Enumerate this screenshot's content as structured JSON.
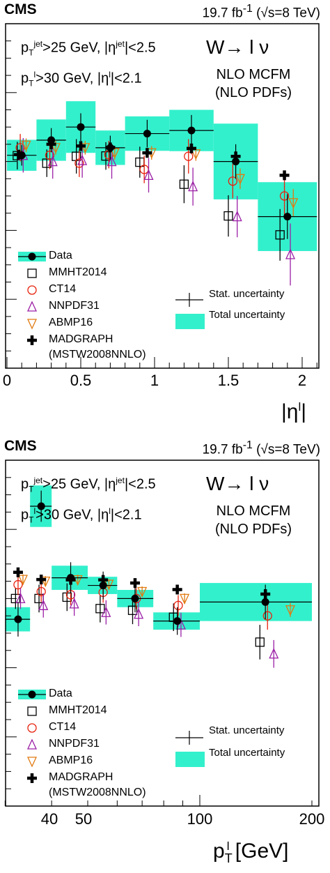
{
  "header": {
    "experiment": "CMS",
    "lumi": "19.7 fb",
    "lumi_sup": "-1",
    "energy": " (√s=8 TeV)"
  },
  "selection": {
    "jet_a": "p",
    "jet_sup": "jet",
    "jet_sub": "T",
    "jet_b": ">25 GeV, |η",
    "jet_sup2": "jet",
    "jet_c": "|<2.5",
    "lep_a": "p",
    "lep_sup": "l",
    "lep_sub": "T",
    "lep_b": ">30 GeV, |η",
    "lep_sup2": "l",
    "lep_c": "|<2.1"
  },
  "process": "W→ l ν",
  "calc": {
    "line1": "NLO MCFM",
    "line2": "(NLO PDFs)"
  },
  "legend": {
    "data": "Data",
    "mmht": "MMHT2014",
    "ct14": "CT14",
    "nnpdf": "NNPDF31",
    "abmp": "ABMP16",
    "madgraph": "MADGRAPH",
    "madgraph_pdf": "(MSTW2008NNLO)",
    "stat": "Stat. uncertainty",
    "total": "Total uncertainty"
  },
  "colors": {
    "band": "#33f0cc",
    "mmht": "#000000",
    "ct14": "#e8200c",
    "nnpdf": "#9b1fa6",
    "abmp": "#e07a10",
    "data": "#000000"
  },
  "chart_data": [
    {
      "type": "scatter",
      "xlabel": "|η^l|",
      "xlim": [
        0,
        2.1
      ],
      "x_ticks": [
        "0",
        "0.5",
        "1",
        "1.5",
        "2"
      ],
      "x_tick_values": [
        0,
        0.5,
        1,
        1.5,
        2
      ],
      "ylim": [
        0,
        1
      ],
      "bins": [
        [
          0,
          0.2
        ],
        [
          0.2,
          0.4
        ],
        [
          0.4,
          0.6
        ],
        [
          0.6,
          0.8
        ],
        [
          0.8,
          1.1
        ],
        [
          1.1,
          1.4
        ],
        [
          1.4,
          1.7
        ],
        [
          1.7,
          2.1
        ]
      ],
      "data": {
        "x": [
          0.1,
          0.3,
          0.5,
          0.7,
          0.95,
          1.25,
          1.55,
          1.9
        ],
        "y": [
          0.618,
          0.662,
          0.7,
          0.64,
          0.681,
          0.69,
          0.6,
          0.44
        ],
        "stat": [
          0.03,
          0.035,
          0.04,
          0.035,
          0.04,
          0.045,
          0.05,
          0.065
        ],
        "total": [
          0.045,
          0.06,
          0.075,
          0.05,
          0.05,
          0.06,
          0.11,
          0.1
        ]
      },
      "series": [
        {
          "name": "MMHT2014",
          "x": [
            0.07,
            0.27,
            0.47,
            0.67,
            0.9,
            1.2,
            1.5,
            1.85
          ],
          "y": [
            0.617,
            0.595,
            0.615,
            0.616,
            0.598,
            0.534,
            0.442,
            0.387
          ],
          "err": [
            0.04,
            0.04,
            0.05,
            0.04,
            0.045,
            0.055,
            0.06,
            0.075
          ]
        },
        {
          "name": "CT14",
          "x": [
            0.09,
            0.29,
            0.49,
            0.69,
            0.93,
            1.23,
            1.53,
            1.88
          ],
          "y": [
            0.64,
            0.618,
            0.595,
            0.62,
            0.577,
            0.615,
            0.543,
            0.5
          ],
          "err": [
            0.04,
            0.04,
            0.04,
            0.04,
            0.04,
            0.05,
            0.05,
            0.06
          ]
        },
        {
          "name": "NNPDF31",
          "x": [
            0.11,
            0.31,
            0.51,
            0.71,
            0.96,
            1.26,
            1.56,
            1.92
          ],
          "y": [
            0.618,
            0.6,
            0.603,
            0.6,
            0.56,
            0.527,
            0.44,
            0.33
          ],
          "err": [
            0.05,
            0.05,
            0.05,
            0.05,
            0.05,
            0.055,
            0.06,
            0.09
          ]
        },
        {
          "name": "ABMP16",
          "x": [
            0.13,
            0.33,
            0.53,
            0.73,
            0.98,
            1.28,
            1.58,
            1.94
          ],
          "y": [
            0.647,
            0.64,
            0.64,
            0.625,
            0.625,
            0.622,
            0.55,
            0.48
          ],
          "err": [
            0.02,
            0.02,
            0.02,
            0.02,
            0.02,
            0.02,
            0.03,
            0.04
          ]
        },
        {
          "name": "MADGRAPH",
          "x": [
            0.08,
            0.3,
            0.5,
            0.7,
            0.95,
            1.25,
            1.55,
            1.88
          ],
          "y": [
            0.62,
            0.65,
            0.645,
            0.641,
            0.625,
            0.638,
            0.615,
            0.56
          ],
          "err": [
            0,
            0,
            0,
            0,
            0,
            0,
            0,
            0
          ]
        }
      ]
    },
    {
      "type": "scatter",
      "xlabel": "p_T^l [GeV]",
      "x_scale": "log",
      "xlim": [
        30,
        200
      ],
      "x_ticks": [
        "40",
        "50",
        "100",
        "200"
      ],
      "x_tick_values": [
        40,
        50,
        100,
        200
      ],
      "ylim": [
        0,
        1
      ],
      "bins": [
        [
          30,
          35
        ],
        [
          35,
          40
        ],
        [
          40,
          50
        ],
        [
          50,
          60
        ],
        [
          60,
          75
        ],
        [
          75,
          100
        ],
        [
          100,
          200
        ]
      ],
      "data": {
        "x": [
          32.5,
          37.5,
          45,
          55,
          67,
          87,
          150
        ],
        "y": [
          0.54,
          0.867,
          0.66,
          0.638,
          0.6,
          0.535,
          0.59
        ],
        "stat": [
          0.05,
          0.045,
          0.045,
          0.04,
          0.04,
          0.04,
          0.05
        ],
        "total": [
          0.035,
          0.06,
          0.035,
          0.025,
          0.025,
          0.025,
          0.055
        ]
      },
      "series": [
        {
          "name": "MMHT2014",
          "x": [
            32,
            37,
            44,
            54,
            66,
            85,
            145
          ],
          "y": [
            0.6,
            0.6,
            0.604,
            0.571,
            0.566,
            0.546,
            0.474
          ],
          "err": [
            0.03,
            0.04,
            0.04,
            0.04,
            0.04,
            0.04,
            0.05
          ]
        },
        {
          "name": "CT14",
          "x": [
            32.5,
            37.5,
            45,
            55,
            67.5,
            87.5,
            152
          ],
          "y": [
            0.64,
            0.62,
            0.611,
            0.618,
            0.6,
            0.58,
            0.55
          ],
          "err": [
            0.03,
            0.03,
            0.03,
            0.03,
            0.03,
            0.03,
            0.04
          ]
        },
        {
          "name": "NNPDF31",
          "x": [
            33,
            38,
            46,
            56,
            68.5,
            89,
            158
          ],
          "y": [
            0.6,
            0.58,
            0.585,
            0.56,
            0.555,
            0.524,
            0.44
          ],
          "err": [
            0.03,
            0.035,
            0.035,
            0.035,
            0.035,
            0.035,
            0.04
          ]
        },
        {
          "name": "ABMP16",
          "x": [
            33.5,
            38.5,
            47,
            57,
            70,
            91,
            175
          ],
          "y": [
            0.655,
            0.65,
            0.654,
            0.641,
            0.62,
            0.6,
            0.567
          ],
          "err": [
            0.015,
            0.015,
            0.015,
            0.015,
            0.015,
            0.015,
            0.02
          ]
        },
        {
          "name": "MADGRAPH",
          "x": [
            32.5,
            37.5,
            45,
            55,
            67,
            87,
            150
          ],
          "y": [
            0.676,
            0.655,
            0.654,
            0.654,
            0.645,
            0.626,
            0.613
          ],
          "err": [
            0,
            0,
            0,
            0,
            0,
            0,
            0
          ]
        }
      ]
    }
  ]
}
